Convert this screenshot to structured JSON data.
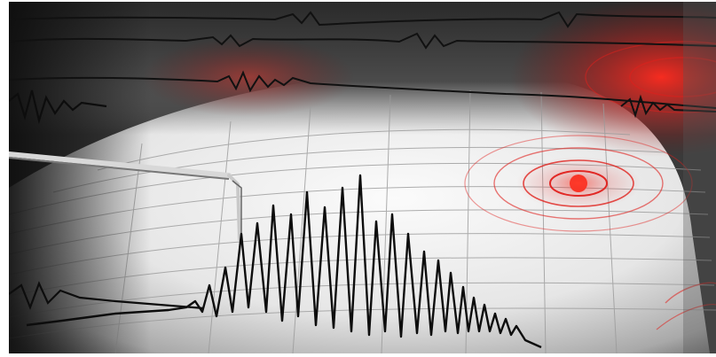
{
  "image": {
    "subject": "seismograph",
    "colors": {
      "ink": "#0d0d0d",
      "paper": "#f2f2f2",
      "grid": "#9a9a9a",
      "alert": "#e0201c",
      "shadow": "#1a1a1a"
    }
  }
}
